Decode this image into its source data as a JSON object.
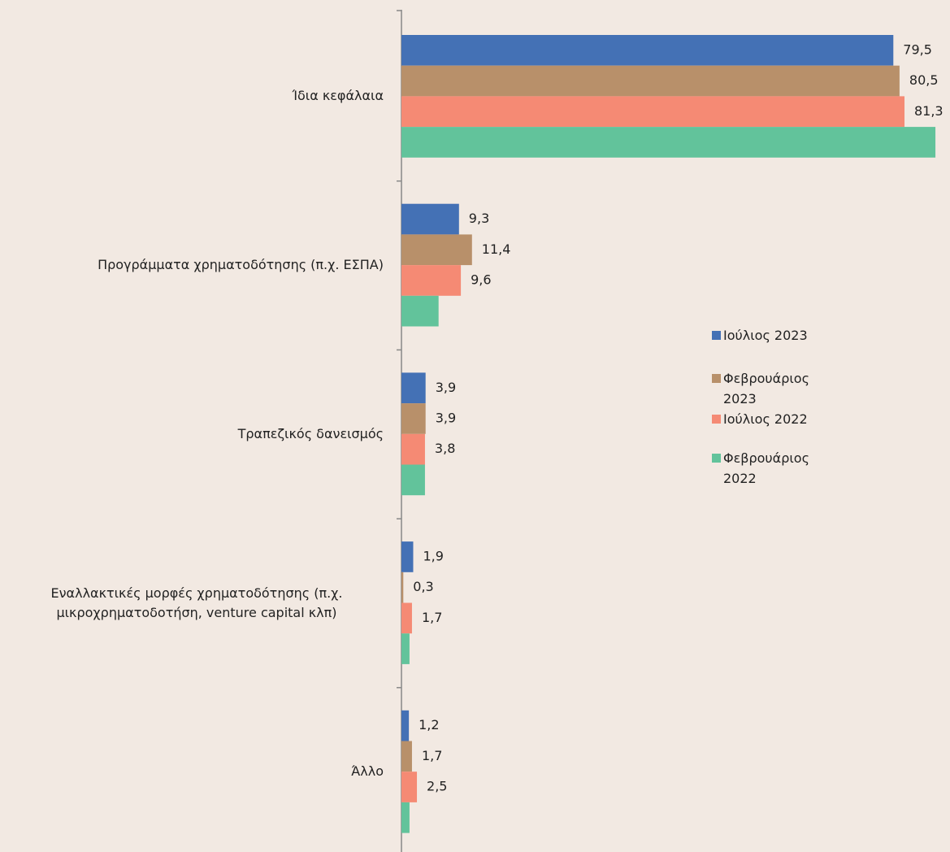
{
  "chart_data": {
    "type": "bar",
    "orientation": "horizontal",
    "categories": [
      "Ίδια κεφάλαια",
      "Προγράμματα χρηματοδότησης (π.χ. ΕΣΠΑ)",
      "Τραπεζικός δανεισμός",
      "Εναλλακτικές μορφές χρηματοδότησης (π.χ. μικροχρηματοδοτήση, venture capital κλπ)",
      "Άλλο"
    ],
    "series": [
      {
        "name": "Ιούλιος 2023",
        "color": "#4471b5",
        "values": [
          79.5,
          9.3,
          3.9,
          1.9,
          1.2
        ],
        "value_labels": [
          "79,5",
          "9,3",
          "3,9",
          "1,9",
          "1,2"
        ]
      },
      {
        "name": "Φεβρουάριος 2023",
        "color": "#b8906a",
        "values": [
          80.5,
          11.4,
          3.9,
          0.3,
          1.7
        ],
        "value_labels": [
          "80,5",
          "11,4",
          "3,9",
          "0,3",
          "1,7"
        ]
      },
      {
        "name": "Ιούλιος 2022",
        "color": "#f58a74",
        "values": [
          81.3,
          9.6,
          3.8,
          1.7,
          2.5
        ],
        "value_labels": [
          "81,3",
          "9,6",
          "3,8",
          "1,7",
          "2,5"
        ]
      },
      {
        "name": "Φεβρουάριος 2022",
        "color": "#62c39b",
        "values": [
          86.3,
          6.0,
          3.8,
          1.3,
          1.3
        ]
      }
    ],
    "xlim": [
      0,
      88
    ],
    "legend": "right"
  }
}
